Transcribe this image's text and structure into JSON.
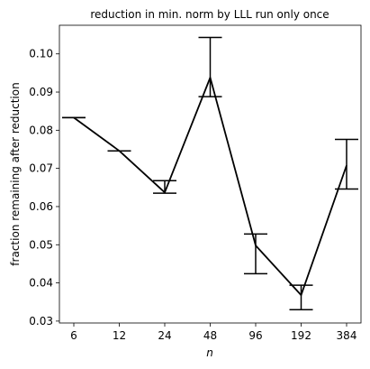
{
  "chart_data": {
    "type": "line",
    "title": "reduction in min. norm by LLL run only once",
    "xlabel": "n",
    "ylabel": "fraction remaining after reduction",
    "x": [
      "6",
      "12",
      "24",
      "48",
      "96",
      "192",
      "384"
    ],
    "x_scale": "log2",
    "ylim": [
      0.0295,
      0.1075
    ],
    "yticks": [
      "0.03",
      "0.04",
      "0.05",
      "0.06",
      "0.07",
      "0.08",
      "0.09",
      "0.10"
    ],
    "grid": false,
    "legend": "none",
    "color": "#000000",
    "series": [
      {
        "values": [
          0.0833,
          0.0746,
          0.0637,
          0.0938,
          0.0498,
          0.0368,
          0.0708
        ],
        "err_low": [
          0.0833,
          0.0746,
          0.0635,
          0.0888,
          0.0424,
          0.033,
          0.0646
        ],
        "err_high": [
          0.0833,
          0.0746,
          0.0668,
          0.1043,
          0.0528,
          0.0394,
          0.0776
        ]
      }
    ]
  }
}
